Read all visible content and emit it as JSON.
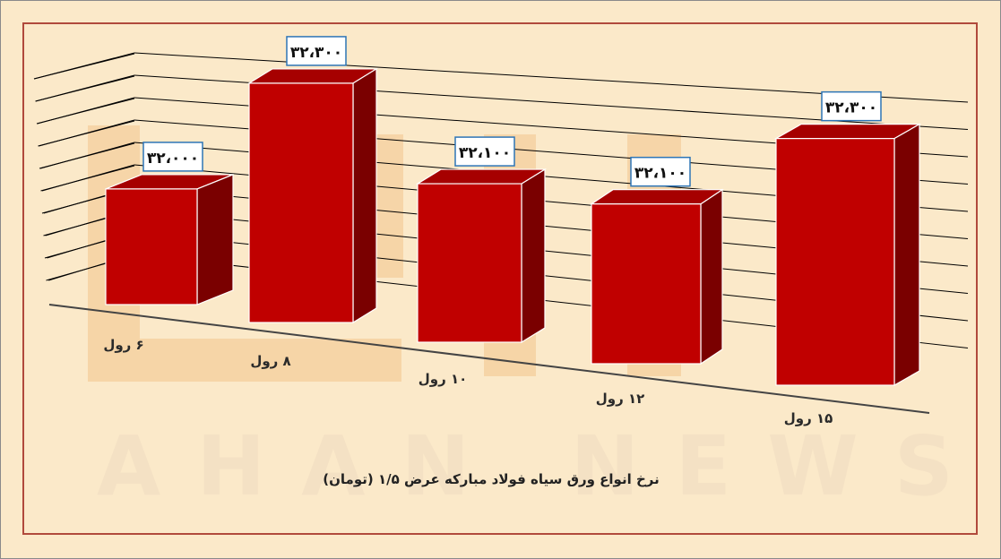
{
  "chart_data": {
    "type": "bar",
    "title": "نرخ انواع ورق سیاه فولاد مبارکه عرض ۱/۵ (تومان)",
    "categories": [
      "۶ رول",
      "۸ رول",
      "۱۰ رول",
      "۱۲ رول",
      "۱۵ رول"
    ],
    "values": [
      32000,
      32300,
      32100,
      32100,
      32300
    ],
    "value_labels": [
      "۳۲،۰۰۰",
      "۳۲،۳۰۰",
      "۳۲،۱۰۰",
      "۳۲،۱۰۰",
      "۳۲،۳۰۰"
    ],
    "style": "3d",
    "grid": true,
    "legend": "none",
    "colors": {
      "bar_front": "#c00000",
      "bar_side": "#7a0000",
      "bar_top": "#a60000",
      "label_border": "#2e75b6",
      "background": "#fbe9c9",
      "frame": "#b04a3c"
    }
  },
  "watermark": {
    "text": "AHAN NEWS",
    "logo_color": "#f2c58c"
  }
}
